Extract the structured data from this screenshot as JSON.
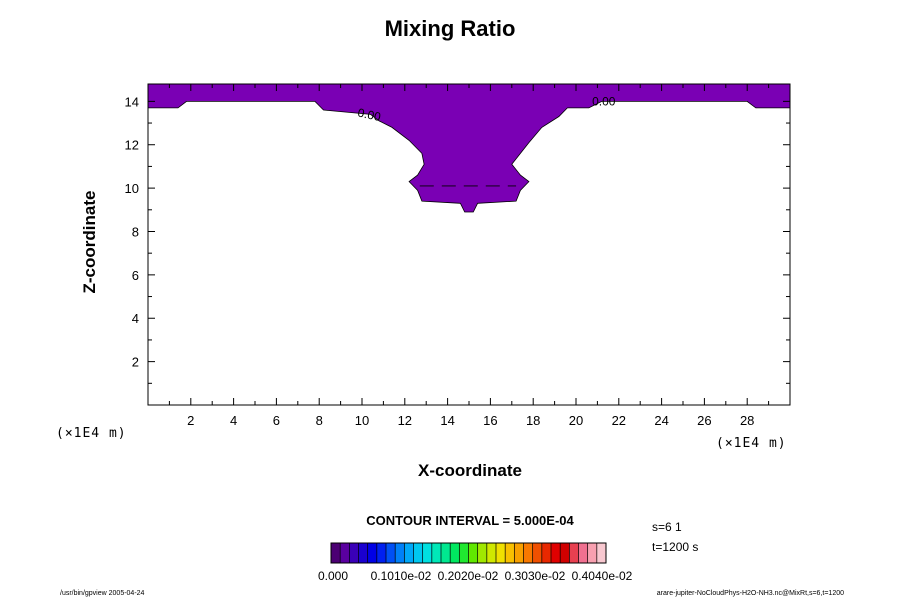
{
  "chart_data": {
    "type": "contour",
    "title": "Mixing Ratio",
    "xlabel": "X-coordinate",
    "ylabel": "Z-coordinate",
    "x_unit": "(×1E4 m)",
    "y_unit": "(×1E4 m)",
    "xlim": [
      0,
      30
    ],
    "ylim": [
      0,
      14.8
    ],
    "x_ticks": [
      2,
      4,
      6,
      8,
      10,
      12,
      14,
      16,
      18,
      20,
      22,
      24,
      26,
      28
    ],
    "y_ticks": [
      2,
      4,
      6,
      8,
      10,
      12,
      14
    ],
    "contour_labels": [
      {
        "text": "0.00",
        "x": 10.3,
        "y": 13.2
      },
      {
        "text": "0.00",
        "x": 21.3,
        "y": 13.8
      }
    ],
    "filled_region": {
      "color": "#7a00b4",
      "boundary": [
        [
          0,
          14.8
        ],
        [
          30,
          14.8
        ],
        [
          30,
          13.7
        ],
        [
          28.4,
          13.7
        ],
        [
          28.0,
          14.0
        ],
        [
          21.2,
          14.0
        ],
        [
          20.6,
          13.7
        ],
        [
          19.6,
          13.7
        ],
        [
          19.2,
          13.3
        ],
        [
          18.4,
          12.8
        ],
        [
          17.8,
          12.1
        ],
        [
          17.4,
          11.6
        ],
        [
          17.0,
          11.1
        ],
        [
          17.4,
          10.6
        ],
        [
          17.8,
          10.3
        ],
        [
          17.4,
          9.9
        ],
        [
          17.2,
          9.4
        ],
        [
          15.4,
          9.3
        ],
        [
          15.2,
          8.9
        ],
        [
          14.8,
          8.9
        ],
        [
          14.6,
          9.3
        ],
        [
          12.8,
          9.4
        ],
        [
          12.6,
          9.9
        ],
        [
          12.2,
          10.3
        ],
        [
          12.6,
          10.6
        ],
        [
          12.9,
          11.1
        ],
        [
          12.8,
          11.6
        ],
        [
          12.2,
          12.2
        ],
        [
          11.4,
          12.8
        ],
        [
          10.8,
          13.1
        ],
        [
          10.4,
          13.4
        ],
        [
          8.2,
          13.6
        ],
        [
          7.8,
          14.0
        ],
        [
          1.8,
          14.0
        ],
        [
          1.4,
          13.7
        ],
        [
          0,
          13.7
        ]
      ]
    },
    "colorbar": {
      "colors": [
        "#4b0073",
        "#5a00a0",
        "#3a00b8",
        "#1a00d0",
        "#0000e6",
        "#0020f0",
        "#0050f5",
        "#0080f8",
        "#00a8f8",
        "#00c8f0",
        "#00e0e0",
        "#00e8b8",
        "#00e890",
        "#00e860",
        "#20e830",
        "#60e800",
        "#a0e800",
        "#d0e800",
        "#f0e000",
        "#f8c000",
        "#f8a000",
        "#f87800",
        "#f05000",
        "#e82800",
        "#e00000",
        "#d00000",
        "#e84050",
        "#f07090",
        "#f8a0b0",
        "#f8c8d0"
      ],
      "tick_labels": [
        "0.000",
        "0.1010e-02",
        "0.2020e-02",
        "0.3030e-02",
        "0.4040e-02"
      ]
    }
  },
  "contour_interval": "CONTOUR INTERVAL = 5.000E-04",
  "step": "s=6 1",
  "time": "t=1200 s",
  "footer_left": "/usr/bin/gpview 2005-04-24",
  "footer_right": "arare-jupiter-NoCloudPhys-H2O-NH3.nc@MixRt,s=6,t=1200"
}
